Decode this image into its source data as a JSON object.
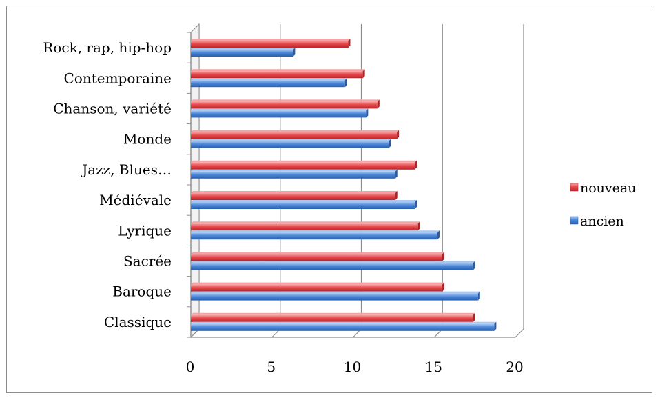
{
  "chart_data": {
    "type": "bar",
    "orientation": "horizontal",
    "style": "3d",
    "categories": [
      "Classique",
      "Baroque",
      "Sacrée",
      "Lyrique",
      "Médiévale",
      "Jazz, Blues…",
      "Monde",
      "Chanson, variété",
      "Contemporaine",
      "Rock, rap, hip-hop"
    ],
    "series": [
      {
        "name": "nouveau",
        "color": "#e8474a",
        "values": [
          17.4,
          15.5,
          15.5,
          14.0,
          12.6,
          13.8,
          12.7,
          11.5,
          10.6,
          9.7
        ]
      },
      {
        "name": "ancien",
        "color": "#4a86d8",
        "values": [
          18.7,
          17.7,
          17.4,
          15.2,
          13.8,
          12.6,
          12.2,
          10.8,
          9.5,
          6.3
        ]
      }
    ],
    "xlim": [
      0,
      20
    ],
    "xticks": [
      "0",
      "5",
      "10",
      "15",
      "20"
    ],
    "grid": true,
    "legend_position": "right"
  }
}
